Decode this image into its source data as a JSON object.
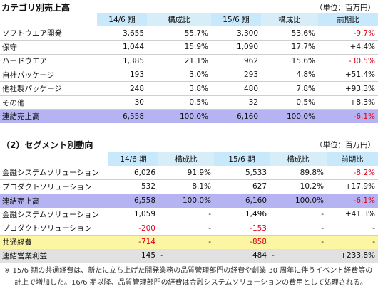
{
  "section1": {
    "title": "カテゴリ別売上高",
    "unit": "（単位：百万円）",
    "headers": [
      "14/6 期",
      "構成比",
      "15/6 期",
      "構成比",
      "前期比"
    ],
    "rows": [
      {
        "label": "ソフトウエア開発",
        "v1": "3,655",
        "r1": "55.7%",
        "v2": "3,300",
        "r2": "53.6%",
        "chg": "-9.7%",
        "neg": true
      },
      {
        "label": "保守",
        "v1": "1,044",
        "r1": "15.9%",
        "v2": "1,090",
        "r2": "17.7%",
        "chg": "+4.4%",
        "neg": false
      },
      {
        "label": "ハードウエア",
        "v1": "1,385",
        "r1": "21.1%",
        "v2": "962",
        "r2": "15.6%",
        "chg": "-30.5%",
        "neg": true
      },
      {
        "label": "自社パッケージ",
        "v1": "193",
        "r1": "3.0%",
        "v2": "293",
        "r2": "4.8%",
        "chg": "+51.4%",
        "neg": false
      },
      {
        "label": "他社製パッケージ",
        "v1": "248",
        "r1": "3.8%",
        "v2": "480",
        "r2": "7.8%",
        "chg": "+93.3%",
        "neg": false
      },
      {
        "label": "その他",
        "v1": "30",
        "r1": "0.5%",
        "v2": "32",
        "r2": "0.5%",
        "chg": "+8.3%",
        "neg": false
      }
    ],
    "total": {
      "label": "連結売上高",
      "v1": "6,558",
      "r1": "100.0%",
      "v2": "6,160",
      "r2": "100.0%",
      "chg": "-6.1%"
    }
  },
  "section2": {
    "title": "（2）セグメント別動向",
    "unit": "（単位：百万円）",
    "headers": [
      "14/6 期",
      "構成比",
      "15/6 期",
      "構成比",
      "前期比"
    ],
    "sales_rows": [
      {
        "label": "金融システムソリューション",
        "v1": "6,026",
        "r1": "91.9%",
        "v2": "5,533",
        "r2": "89.8%",
        "chg": "-8.2%",
        "neg": true
      },
      {
        "label": "プロダクトソリューション",
        "v1": "532",
        "r1": "8.1%",
        "v2": "627",
        "r2": "10.2%",
        "chg": "+17.9%",
        "neg": false
      }
    ],
    "sales_total": {
      "label": "連結売上高",
      "v1": "6,558",
      "r1": "100.0%",
      "v2": "6,160",
      "r2": "100.0%",
      "chg": "-6.1%"
    },
    "profit_rows": [
      {
        "label": "金融システムソリューション",
        "v1": "1,059",
        "r1": "-",
        "v2": "1,496",
        "r2": "-",
        "chg": "+41.3%"
      },
      {
        "label": "プロダクトソリューション",
        "v1": "-200",
        "r1": "-",
        "v2": "-153",
        "r2": "-",
        "chg": "-"
      }
    ],
    "common": {
      "label": "共通経費",
      "v1": "-714",
      "r1": "-",
      "v2": "-858",
      "r2": "-",
      "chg": "-"
    },
    "op_profit": {
      "label": "連結営業利益",
      "v1": "145",
      "r1": "-",
      "v2": "484",
      "r2": "-",
      "chg": "+233.8%"
    }
  },
  "note": "※ 15/6 期の共通経費は、新たに立ち上げた開発業務の品質管理部門の経費や創業 30 周年に伴うイベント経費等の計上で増加した。16/6 期以降、品質管理部門の経費は金融システムソリューションの費用として処理される。",
  "colors": {
    "header": "#c7e9fb",
    "total": "#b6b3f2",
    "common": "#fcf6a3",
    "op_profit": "#e1e1e1",
    "negative": "#e0001b"
  }
}
